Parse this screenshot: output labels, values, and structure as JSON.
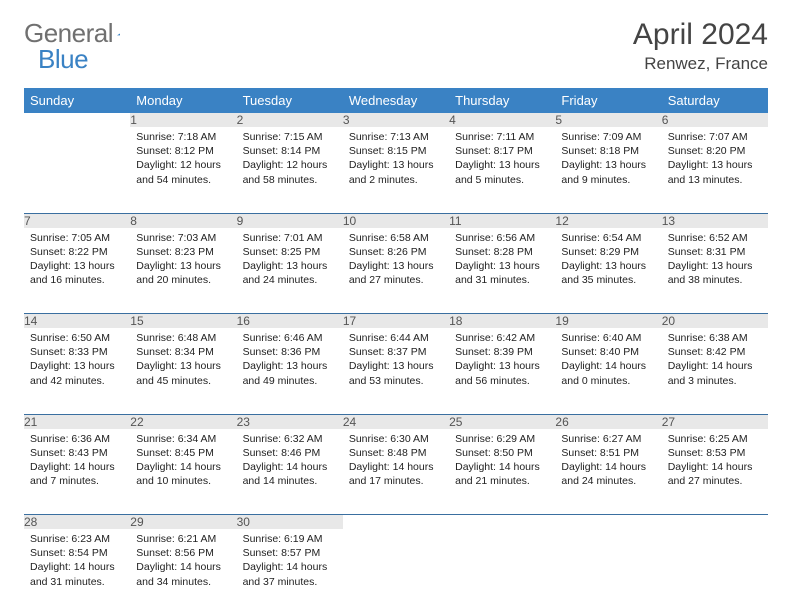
{
  "brand": {
    "name_a": "General",
    "name_b": "Blue"
  },
  "title": "April 2024",
  "location": "Renwez, France",
  "colors": {
    "header_bg": "#3a82c4",
    "header_text": "#ffffff",
    "daynum_bg": "#e8e8e8",
    "daynum_text": "#555555",
    "row_divider": "#3a6fa0",
    "body_text": "#222222",
    "title_text": "#444444",
    "logo_gray": "#707070",
    "logo_blue": "#3a82c4",
    "page_bg": "#ffffff"
  },
  "typography": {
    "daynum_fontsize": 12,
    "cell_fontsize": 10.5,
    "title_fontsize": 30,
    "location_fontsize": 17,
    "header_fontsize": 13
  },
  "weekdays": [
    "Sunday",
    "Monday",
    "Tuesday",
    "Wednesday",
    "Thursday",
    "Friday",
    "Saturday"
  ],
  "weeks": [
    [
      {
        "day": "",
        "sunrise": "",
        "sunset": "",
        "daylight": ""
      },
      {
        "day": "1",
        "sunrise": "Sunrise: 7:18 AM",
        "sunset": "Sunset: 8:12 PM",
        "daylight": "Daylight: 12 hours and 54 minutes."
      },
      {
        "day": "2",
        "sunrise": "Sunrise: 7:15 AM",
        "sunset": "Sunset: 8:14 PM",
        "daylight": "Daylight: 12 hours and 58 minutes."
      },
      {
        "day": "3",
        "sunrise": "Sunrise: 7:13 AM",
        "sunset": "Sunset: 8:15 PM",
        "daylight": "Daylight: 13 hours and 2 minutes."
      },
      {
        "day": "4",
        "sunrise": "Sunrise: 7:11 AM",
        "sunset": "Sunset: 8:17 PM",
        "daylight": "Daylight: 13 hours and 5 minutes."
      },
      {
        "day": "5",
        "sunrise": "Sunrise: 7:09 AM",
        "sunset": "Sunset: 8:18 PM",
        "daylight": "Daylight: 13 hours and 9 minutes."
      },
      {
        "day": "6",
        "sunrise": "Sunrise: 7:07 AM",
        "sunset": "Sunset: 8:20 PM",
        "daylight": "Daylight: 13 hours and 13 minutes."
      }
    ],
    [
      {
        "day": "7",
        "sunrise": "Sunrise: 7:05 AM",
        "sunset": "Sunset: 8:22 PM",
        "daylight": "Daylight: 13 hours and 16 minutes."
      },
      {
        "day": "8",
        "sunrise": "Sunrise: 7:03 AM",
        "sunset": "Sunset: 8:23 PM",
        "daylight": "Daylight: 13 hours and 20 minutes."
      },
      {
        "day": "9",
        "sunrise": "Sunrise: 7:01 AM",
        "sunset": "Sunset: 8:25 PM",
        "daylight": "Daylight: 13 hours and 24 minutes."
      },
      {
        "day": "10",
        "sunrise": "Sunrise: 6:58 AM",
        "sunset": "Sunset: 8:26 PM",
        "daylight": "Daylight: 13 hours and 27 minutes."
      },
      {
        "day": "11",
        "sunrise": "Sunrise: 6:56 AM",
        "sunset": "Sunset: 8:28 PM",
        "daylight": "Daylight: 13 hours and 31 minutes."
      },
      {
        "day": "12",
        "sunrise": "Sunrise: 6:54 AM",
        "sunset": "Sunset: 8:29 PM",
        "daylight": "Daylight: 13 hours and 35 minutes."
      },
      {
        "day": "13",
        "sunrise": "Sunrise: 6:52 AM",
        "sunset": "Sunset: 8:31 PM",
        "daylight": "Daylight: 13 hours and 38 minutes."
      }
    ],
    [
      {
        "day": "14",
        "sunrise": "Sunrise: 6:50 AM",
        "sunset": "Sunset: 8:33 PM",
        "daylight": "Daylight: 13 hours and 42 minutes."
      },
      {
        "day": "15",
        "sunrise": "Sunrise: 6:48 AM",
        "sunset": "Sunset: 8:34 PM",
        "daylight": "Daylight: 13 hours and 45 minutes."
      },
      {
        "day": "16",
        "sunrise": "Sunrise: 6:46 AM",
        "sunset": "Sunset: 8:36 PM",
        "daylight": "Daylight: 13 hours and 49 minutes."
      },
      {
        "day": "17",
        "sunrise": "Sunrise: 6:44 AM",
        "sunset": "Sunset: 8:37 PM",
        "daylight": "Daylight: 13 hours and 53 minutes."
      },
      {
        "day": "18",
        "sunrise": "Sunrise: 6:42 AM",
        "sunset": "Sunset: 8:39 PM",
        "daylight": "Daylight: 13 hours and 56 minutes."
      },
      {
        "day": "19",
        "sunrise": "Sunrise: 6:40 AM",
        "sunset": "Sunset: 8:40 PM",
        "daylight": "Daylight: 14 hours and 0 minutes."
      },
      {
        "day": "20",
        "sunrise": "Sunrise: 6:38 AM",
        "sunset": "Sunset: 8:42 PM",
        "daylight": "Daylight: 14 hours and 3 minutes."
      }
    ],
    [
      {
        "day": "21",
        "sunrise": "Sunrise: 6:36 AM",
        "sunset": "Sunset: 8:43 PM",
        "daylight": "Daylight: 14 hours and 7 minutes."
      },
      {
        "day": "22",
        "sunrise": "Sunrise: 6:34 AM",
        "sunset": "Sunset: 8:45 PM",
        "daylight": "Daylight: 14 hours and 10 minutes."
      },
      {
        "day": "23",
        "sunrise": "Sunrise: 6:32 AM",
        "sunset": "Sunset: 8:46 PM",
        "daylight": "Daylight: 14 hours and 14 minutes."
      },
      {
        "day": "24",
        "sunrise": "Sunrise: 6:30 AM",
        "sunset": "Sunset: 8:48 PM",
        "daylight": "Daylight: 14 hours and 17 minutes."
      },
      {
        "day": "25",
        "sunrise": "Sunrise: 6:29 AM",
        "sunset": "Sunset: 8:50 PM",
        "daylight": "Daylight: 14 hours and 21 minutes."
      },
      {
        "day": "26",
        "sunrise": "Sunrise: 6:27 AM",
        "sunset": "Sunset: 8:51 PM",
        "daylight": "Daylight: 14 hours and 24 minutes."
      },
      {
        "day": "27",
        "sunrise": "Sunrise: 6:25 AM",
        "sunset": "Sunset: 8:53 PM",
        "daylight": "Daylight: 14 hours and 27 minutes."
      }
    ],
    [
      {
        "day": "28",
        "sunrise": "Sunrise: 6:23 AM",
        "sunset": "Sunset: 8:54 PM",
        "daylight": "Daylight: 14 hours and 31 minutes."
      },
      {
        "day": "29",
        "sunrise": "Sunrise: 6:21 AM",
        "sunset": "Sunset: 8:56 PM",
        "daylight": "Daylight: 14 hours and 34 minutes."
      },
      {
        "day": "30",
        "sunrise": "Sunrise: 6:19 AM",
        "sunset": "Sunset: 8:57 PM",
        "daylight": "Daylight: 14 hours and 37 minutes."
      },
      {
        "day": "",
        "sunrise": "",
        "sunset": "",
        "daylight": ""
      },
      {
        "day": "",
        "sunrise": "",
        "sunset": "",
        "daylight": ""
      },
      {
        "day": "",
        "sunrise": "",
        "sunset": "",
        "daylight": ""
      },
      {
        "day": "",
        "sunrise": "",
        "sunset": "",
        "daylight": ""
      }
    ]
  ]
}
